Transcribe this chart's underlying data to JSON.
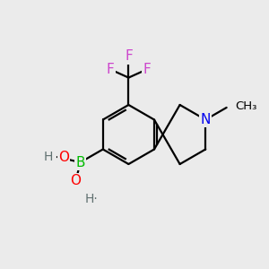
{
  "background_color": "#ebebeb",
  "bond_color": "#000000",
  "bond_width": 1.6,
  "atom_colors": {
    "B": "#00bb00",
    "O": "#ff0000",
    "N": "#0000ee",
    "F": "#cc44cc",
    "H": "#607070",
    "C": "#000000"
  },
  "L": 1.0,
  "bx": 4.3,
  "by": 4.5,
  "xlim": [
    0,
    9
  ],
  "ylim": [
    0,
    9
  ],
  "figsize": [
    3.0,
    3.0
  ],
  "dpi": 100
}
